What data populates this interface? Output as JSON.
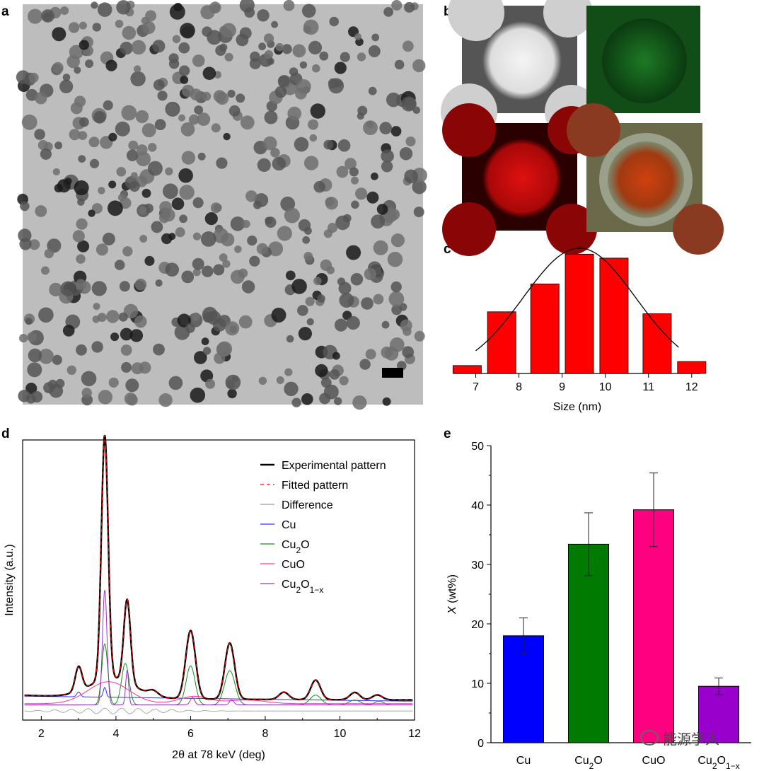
{
  "panels": {
    "a": "a",
    "b": "b",
    "c": "c",
    "d": "d",
    "e": "e"
  },
  "watermark": {
    "icon": "wechat-icon",
    "text": "能源学人"
  },
  "chart_data": [
    {
      "panel": "c",
      "type": "bar",
      "categories": [
        "7",
        "8",
        "9",
        "10",
        "11",
        "12"
      ],
      "x": [
        6.8,
        7.6,
        8.6,
        9.4,
        10.2,
        11.2,
        12
      ],
      "values": [
        2,
        15.5,
        22.5,
        30,
        29,
        15,
        3
      ],
      "fit_curve": "gaussian",
      "xlabel": "Size (nm)",
      "ylabel": "",
      "xlim": [
        6.5,
        12.2
      ],
      "ylim": [
        0,
        32
      ],
      "bar_color": "#ff0000"
    },
    {
      "panel": "d",
      "type": "line",
      "xlabel": "2θ at 78 keV (deg)",
      "ylabel": "Intensity (a.u.)",
      "xlim": [
        1.5,
        12
      ],
      "ticks": [
        "2",
        "4",
        "6",
        "8",
        "10",
        "12"
      ],
      "legend": [
        {
          "name": "Experimental pattern",
          "color": "#000000"
        },
        {
          "name": "Fitted pattern",
          "color": "#ff0000"
        },
        {
          "name": "Difference",
          "color": "#999999"
        },
        {
          "name": "Cu",
          "color": "#3030ff"
        },
        {
          "name": "Cu2O",
          "color": "#1a8c1a"
        },
        {
          "name": "CuO",
          "color": "#ff3399"
        },
        {
          "name": "Cu2O1−x",
          "color": "#9933cc"
        }
      ],
      "peaks_experimental": [
        {
          "x": 3.0,
          "h": 0.1
        },
        {
          "x": 3.7,
          "h": 1.0
        },
        {
          "x": 4.3,
          "h": 0.34
        },
        {
          "x": 5.0,
          "h": 0.02
        },
        {
          "x": 6.0,
          "h": 0.28
        },
        {
          "x": 7.05,
          "h": 0.23
        },
        {
          "x": 8.5,
          "h": 0.03
        },
        {
          "x": 9.35,
          "h": 0.08
        },
        {
          "x": 10.4,
          "h": 0.03
        },
        {
          "x": 11.0,
          "h": 0.02
        }
      ]
    },
    {
      "panel": "e",
      "type": "bar",
      "categories": [
        "Cu",
        "Cu2O",
        "CuO",
        "Cu2O1−x"
      ],
      "values": [
        18,
        33.4,
        39.2,
        9.5
      ],
      "errors": [
        3,
        5.3,
        6.2,
        1.4
      ],
      "colors": [
        "#0000ff",
        "#007a00",
        "#ff0080",
        "#9900cc"
      ],
      "ylabel": "X (wt%)",
      "ylim": [
        0,
        50
      ],
      "yticks": [
        "0",
        "10",
        "20",
        "30",
        "40",
        "50"
      ]
    }
  ]
}
